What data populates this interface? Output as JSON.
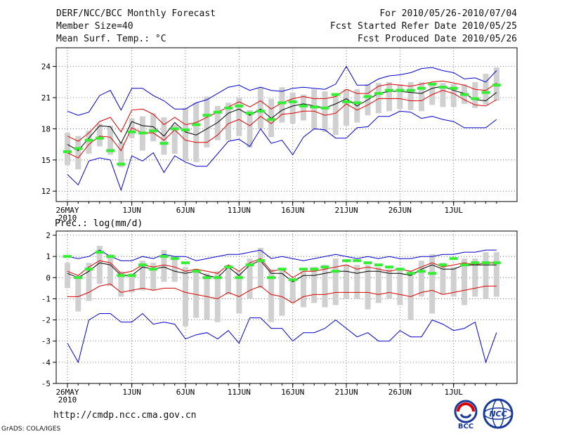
{
  "header": {
    "title": "DERF/NCC/BCC Monthly Forecast",
    "member_size": "Member Size=40",
    "variable": "Mean Surf. Temp.: °C",
    "forecast_period": "For 2010/05/26-2010/07/04",
    "refer_date": "Fcst Started Refer Date 2010/05/25",
    "produced_date": "Fcst Produced Date 2010/05/26"
  },
  "footer": {
    "url": "http://cmdp.ncc.cma.gov.cn",
    "grads": "GrADS: COLA/IGES",
    "logo_bcc_text": "BCC",
    "logo_ncc_text": "NCC"
  },
  "colors": {
    "mean": "#000000",
    "spread": "#dd0000",
    "extreme": "#0000cc",
    "box": "#d0d0d0",
    "observed": "#33ee33"
  },
  "chart_data": [
    {
      "type": "line",
      "title": "Mean Surf. Temp.: °C",
      "x_start": "2010-05-26",
      "x_tick_labels": [
        "26MAY",
        "1JUN",
        "6JUN",
        "11JUN",
        "16JUN",
        "21JUN",
        "26JUN",
        "1JUL"
      ],
      "x_tick_days": [
        0,
        6,
        11,
        16,
        21,
        26,
        31,
        36
      ],
      "x_sub_label": "2010",
      "ylim": [
        11,
        25.8
      ],
      "y_ticks": [
        12,
        15,
        18,
        21,
        24
      ],
      "grid": true,
      "series": [
        {
          "name": "max",
          "values": [
            19.7,
            19.3,
            19.6,
            21.2,
            21.7,
            19.8,
            21.9,
            21.9,
            21.2,
            20.7,
            19.9,
            19.9,
            20.5,
            20.8,
            21.4,
            22.0,
            22.2,
            21.7,
            22.0,
            21.7,
            21.6,
            21.9,
            22.0,
            21.9,
            21.8,
            22.3,
            24.0,
            22.2,
            22.2,
            22.8,
            23.1,
            23.2,
            23.4,
            23.8,
            23.9,
            23.6,
            23.4,
            22.8,
            22.9,
            22.5,
            23.6
          ]
        },
        {
          "name": "upper",
          "values": [
            17.3,
            16.8,
            17.6,
            18.7,
            19.1,
            17.7,
            19.8,
            19.9,
            19.4,
            18.4,
            19.1,
            18.4,
            18.6,
            19.1,
            19.6,
            20.1,
            20.6,
            20.1,
            20.7,
            19.9,
            20.5,
            20.9,
            21.1,
            20.9,
            20.9,
            21.1,
            21.8,
            21.4,
            21.4,
            22.1,
            22.3,
            22.2,
            22.1,
            22.3,
            22.5,
            22.6,
            22.4,
            22.2,
            21.8,
            21.7,
            22.4
          ]
        },
        {
          "name": "mean",
          "values": [
            16.5,
            15.9,
            17.1,
            18.3,
            18.2,
            16.6,
            18.7,
            18.3,
            18.2,
            17.3,
            18.6,
            17.7,
            17.4,
            18.0,
            18.6,
            19.5,
            19.9,
            19.3,
            19.9,
            19.0,
            19.8,
            20.2,
            20.4,
            20.2,
            20.0,
            20.4,
            20.9,
            20.2,
            20.8,
            21.4,
            21.6,
            21.6,
            21.5,
            21.4,
            21.9,
            22.1,
            21.7,
            21.4,
            20.8,
            20.7,
            21.5
          ]
        },
        {
          "name": "lower",
          "values": [
            15.7,
            15.2,
            16.5,
            17.3,
            17.2,
            15.9,
            18.1,
            17.6,
            17.6,
            16.9,
            17.9,
            16.9,
            16.7,
            16.7,
            17.4,
            18.5,
            18.9,
            18.3,
            19.2,
            18.5,
            19.4,
            19.5,
            19.7,
            19.7,
            19.3,
            19.5,
            20.4,
            19.8,
            20.3,
            20.9,
            20.9,
            20.9,
            20.7,
            20.7,
            21.3,
            21.7,
            21.4,
            20.8,
            20.3,
            20.2,
            20.8
          ]
        },
        {
          "name": "min",
          "values": [
            13.6,
            12.6,
            14.9,
            15.2,
            15.0,
            12.1,
            15.4,
            14.9,
            15.7,
            13.8,
            15.4,
            14.8,
            14.4,
            14.4,
            15.6,
            16.8,
            17.0,
            16.3,
            18.0,
            16.6,
            16.9,
            15.5,
            17.2,
            18.0,
            17.9,
            17.1,
            17.1,
            18.1,
            18.2,
            19.2,
            19.2,
            19.7,
            19.6,
            19.0,
            19.2,
            18.9,
            18.7,
            18.1,
            18.1,
            18.1,
            18.9
          ]
        },
        {
          "name": "box_top",
          "values": [
            17.6,
            17.3,
            17.8,
            18.5,
            18.3,
            16.7,
            19.0,
            19.2,
            19.5,
            19.1,
            18.4,
            20.0,
            20.5,
            21.1,
            20.2,
            20.5,
            21.0,
            19.8,
            22.0,
            20.9,
            22.0,
            21.5,
            21.3,
            21.8,
            21.6,
            21.2,
            21.8,
            21.8,
            22.3,
            22.4,
            22.5,
            22.3,
            22.5,
            22.5,
            22.4,
            22.4,
            22.3,
            22.3,
            22.5,
            23.3,
            23.9
          ]
        },
        {
          "name": "box_bottom",
          "values": [
            14.5,
            14.1,
            15.6,
            16.3,
            15.5,
            14.3,
            17.1,
            15.9,
            16.8,
            15.5,
            15.6,
            14.9,
            14.8,
            16.2,
            16.9,
            16.9,
            17.3,
            16.2,
            18.0,
            17.2,
            18.6,
            18.5,
            18.8,
            17.9,
            17.7,
            17.4,
            18.3,
            18.6,
            19.3,
            19.5,
            19.7,
            19.9,
            19.8,
            19.7,
            20.3,
            20.1,
            20.1,
            20.4,
            20.0,
            20.3,
            20.7
          ]
        },
        {
          "name": "observed",
          "values": [
            15.8,
            16.1,
            16.9,
            17.1,
            15.9,
            14.6,
            17.7,
            17.6,
            17.8,
            16.6,
            18.0,
            17.9,
            18.4,
            19.3,
            19.6,
            20.0,
            20.2,
            19.5,
            19.7,
            18.9,
            20.5,
            20.6,
            20.2,
            20.1,
            20.0,
            21.3,
            20.6,
            20.5,
            21.1,
            21.4,
            21.7,
            21.7,
            21.7,
            21.9,
            22.3,
            22.0,
            21.9,
            21.3,
            20.9,
            21.5,
            22.2
          ]
        }
      ]
    },
    {
      "type": "line",
      "title": "Prec.: log(mm/d)",
      "x_start": "2010-05-26",
      "x_tick_labels": [
        "26MAY",
        "1JUN",
        "6JUN",
        "11JUN",
        "16JUN",
        "21JUN",
        "26JUN",
        "1JUL"
      ],
      "x_tick_days": [
        0,
        6,
        11,
        16,
        21,
        26,
        31,
        36
      ],
      "x_sub_label": "2010",
      "ylim": [
        -5,
        2.2
      ],
      "y_ticks": [
        -5,
        -4,
        -3,
        -2,
        -1,
        0,
        1,
        2
      ],
      "grid": true,
      "series": [
        {
          "name": "max",
          "values": [
            1.0,
            0.9,
            1.0,
            1.3,
            1.0,
            0.8,
            0.8,
            1.0,
            0.9,
            1.1,
            1.0,
            1.0,
            0.8,
            0.9,
            1.0,
            1.1,
            1.1,
            1.2,
            1.3,
            0.9,
            1.0,
            0.9,
            0.8,
            0.9,
            1.0,
            1.1,
            1.0,
            0.9,
            1.0,
            0.9,
            1.0,
            0.9,
            0.9,
            1.0,
            1.0,
            1.1,
            1.1,
            1.2,
            1.2,
            1.3,
            1.3
          ]
        },
        {
          "name": "upper",
          "values": [
            0.3,
            0.1,
            0.5,
            0.8,
            0.7,
            0.2,
            0.3,
            0.6,
            0.5,
            0.6,
            0.5,
            0.3,
            0.4,
            0.3,
            0.2,
            0.6,
            0.3,
            0.7,
            0.9,
            0.3,
            0.4,
            0.0,
            0.3,
            0.3,
            0.4,
            0.5,
            0.6,
            0.4,
            0.5,
            0.4,
            0.3,
            0.4,
            0.3,
            0.5,
            0.7,
            0.5,
            0.6,
            0.7,
            0.6,
            0.7,
            0.7
          ]
        },
        {
          "name": "mean",
          "values": [
            0.2,
            0.0,
            0.3,
            0.7,
            0.6,
            0.1,
            0.1,
            0.5,
            0.4,
            0.5,
            0.3,
            0.2,
            0.3,
            0.1,
            0.0,
            0.5,
            0.1,
            0.6,
            0.8,
            0.2,
            0.2,
            -0.2,
            0.1,
            0.1,
            0.2,
            0.3,
            0.3,
            0.2,
            0.3,
            0.3,
            0.2,
            0.2,
            0.1,
            0.4,
            0.6,
            0.4,
            0.4,
            0.6,
            0.6,
            0.6,
            0.6
          ]
        },
        {
          "name": "lower",
          "values": [
            -0.9,
            -0.9,
            -0.7,
            -0.4,
            -0.3,
            -0.7,
            -0.6,
            -0.5,
            -0.6,
            -0.5,
            -0.5,
            -0.7,
            -0.8,
            -0.9,
            -1.0,
            -0.7,
            -0.9,
            -0.6,
            -0.4,
            -0.8,
            -0.9,
            -1.2,
            -0.9,
            -0.8,
            -0.8,
            -0.7,
            -0.7,
            -0.7,
            -0.7,
            -0.8,
            -0.7,
            -0.8,
            -0.9,
            -0.7,
            -0.6,
            -0.8,
            -0.7,
            -0.6,
            -0.5,
            -0.4,
            -0.4
          ]
        },
        {
          "name": "min",
          "values": [
            -3.1,
            -4.0,
            -2.0,
            -1.7,
            -1.7,
            -2.1,
            -2.1,
            -1.7,
            -2.2,
            -2.1,
            -2.2,
            -2.9,
            -2.7,
            -2.6,
            -2.9,
            -2.5,
            -3.1,
            -1.9,
            -1.9,
            -2.4,
            -2.4,
            -3.0,
            -2.6,
            -2.6,
            -2.4,
            -2.0,
            -2.4,
            -2.8,
            -2.6,
            -3.0,
            -3.0,
            -2.5,
            -2.8,
            -2.8,
            -2.0,
            -2.2,
            -2.5,
            -2.4,
            -2.1,
            -4.0,
            -2.6
          ]
        },
        {
          "name": "box_top",
          "values": [
            0.7,
            0.1,
            0.7,
            1.5,
            1.1,
            0.3,
            0.2,
            0.8,
            0.7,
            1.3,
            1.0,
            0.5,
            0.4,
            0.2,
            0.3,
            0.6,
            0.3,
            0.9,
            1.4,
            0.4,
            0.4,
            -0.1,
            0.3,
            0.5,
            0.6,
            0.9,
            0.6,
            0.6,
            0.6,
            0.5,
            0.4,
            0.4,
            0.3,
            0.8,
            1.1,
            0.7,
            0.5,
            0.9,
            0.9,
            1.2,
            1.2
          ]
        },
        {
          "name": "box_bottom",
          "values": [
            -0.5,
            -1.6,
            -1.1,
            -0.3,
            -0.4,
            -0.9,
            -0.7,
            -0.6,
            -0.6,
            -0.2,
            -0.2,
            -2.3,
            -1.9,
            -2.0,
            -2.1,
            -0.8,
            -1.7,
            -1.0,
            -0.5,
            -2.1,
            -1.8,
            -1.2,
            -1.4,
            -1.2,
            -1.4,
            -1.3,
            -1.0,
            -1.0,
            -1.5,
            -1.2,
            -1.0,
            -1.3,
            -2.0,
            -0.9,
            -1.7,
            -0.8,
            -0.9,
            -1.3,
            -0.9,
            -1.0,
            -0.9
          ]
        },
        {
          "name": "observed",
          "values": [
            1.0,
            0.0,
            0.4,
            1.2,
            1.0,
            0.1,
            0.1,
            0.6,
            0.4,
            1.0,
            0.9,
            0.7,
            0.3,
            0.0,
            0.0,
            0.5,
            0.0,
            0.6,
            0.8,
            0.0,
            0.4,
            -0.1,
            0.4,
            0.4,
            0.5,
            0.3,
            0.8,
            0.8,
            0.7,
            0.6,
            0.5,
            0.4,
            0.2,
            0.3,
            0.2,
            0.6,
            0.9,
            0.6,
            0.7,
            0.7,
            0.7
          ]
        }
      ]
    }
  ]
}
